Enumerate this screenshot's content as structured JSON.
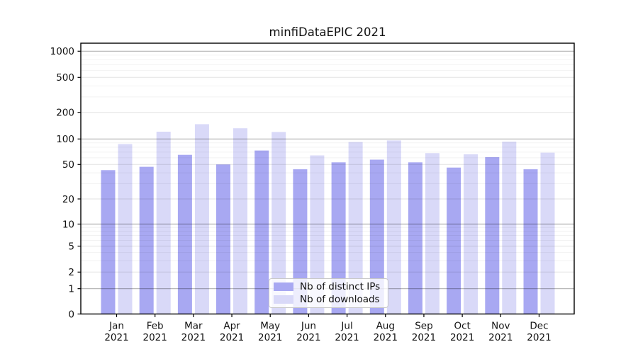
{
  "figure": {
    "background": "#ffffff"
  },
  "chart_data": {
    "type": "bar",
    "title": "minfiDataEPIC 2021",
    "categories": [
      {
        "month": "Jan",
        "year": "2021"
      },
      {
        "month": "Feb",
        "year": "2021"
      },
      {
        "month": "Mar",
        "year": "2021"
      },
      {
        "month": "Apr",
        "year": "2021"
      },
      {
        "month": "May",
        "year": "2021"
      },
      {
        "month": "Jun",
        "year": "2021"
      },
      {
        "month": "Jul",
        "year": "2021"
      },
      {
        "month": "Aug",
        "year": "2021"
      },
      {
        "month": "Sep",
        "year": "2021"
      },
      {
        "month": "Oct",
        "year": "2021"
      },
      {
        "month": "Nov",
        "year": "2021"
      },
      {
        "month": "Dec",
        "year": "2021"
      }
    ],
    "series": [
      {
        "name": "Nb of distinct IPs",
        "color": "#a8a8f2",
        "values": [
          43,
          47,
          65,
          50,
          73,
          44,
          53,
          57,
          53,
          46,
          61,
          44
        ]
      },
      {
        "name": "Nb of downloads",
        "color": "#d9d9f8",
        "values": [
          87,
          121,
          147,
          132,
          120,
          64,
          92,
          96,
          68,
          66,
          93,
          69
        ]
      }
    ],
    "y_axis": {
      "scale": "symlog",
      "range": [
        0,
        1250
      ],
      "ticks": [
        0,
        1,
        2,
        5,
        10,
        20,
        50,
        100,
        200,
        500,
        1000
      ],
      "tick_labels": [
        "0",
        "1",
        "2",
        "5",
        "10",
        "20",
        "50",
        "100",
        "200",
        "500",
        "1000"
      ],
      "decade_ticks": [
        1,
        10,
        100,
        1000
      ],
      "minor_gridlines": [
        3,
        4,
        6,
        7,
        8,
        9,
        30,
        40,
        60,
        70,
        80,
        90,
        300,
        400,
        600,
        700,
        800,
        900
      ]
    },
    "x_axis": {
      "label_line2": "2021"
    },
    "grid": true,
    "legend": {
      "position": "lower-center"
    }
  }
}
